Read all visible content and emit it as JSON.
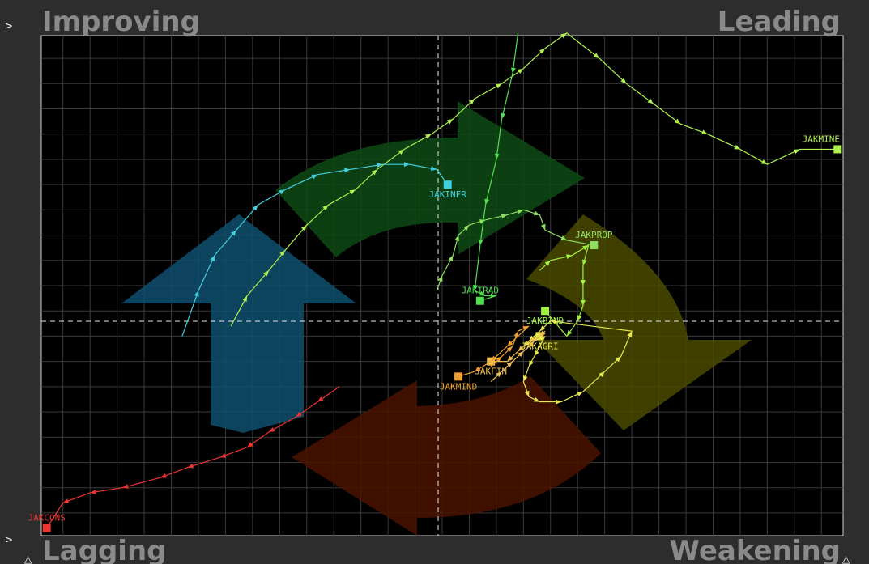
{
  "quadrants": {
    "top_left": "Improving",
    "top_right": "Leading",
    "bottom_left": "Lagging",
    "bottom_right": "Weakening"
  },
  "colors": {
    "background": "#000000",
    "frame": "#2d2d2d",
    "grid": "#3a3a3a",
    "crosshair": "#e8e8e8",
    "improving_arrow": "#0f4f6e",
    "leading_arrow": "#0e4a14",
    "weakening_arrow": "#4a4a00",
    "lagging_arrow": "#4a1300"
  },
  "chart_data": {
    "type": "scatter",
    "subtype": "relative-rotation-graph",
    "title": "",
    "xlabel": "",
    "ylabel": "",
    "center": [
      100,
      100
    ],
    "xlim": [
      92.6,
      107.4
    ],
    "ylim": [
      95.05,
      104.95
    ],
    "grid": true,
    "series": [
      {
        "name": "JAKMINE",
        "color": "#b0f050",
        "points": [
          [
            96.1,
            99.2
          ],
          [
            96.4,
            99.8
          ],
          [
            96.8,
            100.3
          ],
          [
            97.1,
            100.7
          ],
          [
            97.5,
            101.2
          ],
          [
            97.9,
            101.6
          ],
          [
            98.4,
            101.9
          ],
          [
            98.8,
            102.3
          ],
          [
            99.3,
            102.7
          ],
          [
            99.8,
            103.0
          ],
          [
            100.2,
            103.3
          ],
          [
            100.6,
            103.7
          ],
          [
            101.1,
            104.0
          ],
          [
            101.5,
            104.3
          ],
          [
            101.9,
            104.7
          ],
          [
            102.3,
            105.0
          ],
          [
            102.9,
            104.5
          ],
          [
            103.4,
            104.0
          ],
          [
            103.9,
            103.6
          ],
          [
            104.4,
            103.2
          ],
          [
            104.9,
            103.0
          ],
          [
            105.5,
            102.7
          ],
          [
            106.0,
            102.4
          ],
          [
            106.6,
            102.7
          ],
          [
            107.3,
            102.7
          ]
        ]
      },
      {
        "name": "JAKINFR",
        "color": "#40d0e0",
        "points": [
          [
            95.2,
            99.0
          ],
          [
            95.5,
            99.9
          ],
          [
            95.8,
            100.6
          ],
          [
            96.2,
            101.1
          ],
          [
            96.6,
            101.6
          ],
          [
            97.1,
            101.9
          ],
          [
            97.7,
            102.2
          ],
          [
            98.3,
            102.3
          ],
          [
            98.9,
            102.4
          ],
          [
            99.4,
            102.4
          ],
          [
            99.9,
            102.3
          ],
          [
            100.1,
            102.0
          ]
        ]
      },
      {
        "name": "JAKPROP",
        "color": "#90e060",
        "points": [
          [
            99.9,
            99.9
          ],
          [
            100.0,
            100.2
          ],
          [
            100.2,
            100.6
          ],
          [
            100.3,
            101.0
          ],
          [
            100.5,
            101.2
          ],
          [
            100.8,
            101.3
          ],
          [
            101.2,
            101.4
          ],
          [
            101.5,
            101.5
          ],
          [
            101.8,
            101.4
          ],
          [
            101.9,
            101.1
          ],
          [
            102.3,
            100.9
          ],
          [
            102.8,
            100.8
          ]
        ]
      },
      {
        "name": "JAKBIND",
        "color": "#a0f040",
        "points": [
          [
            101.8,
            100.3
          ],
          [
            102.0,
            100.5
          ],
          [
            102.4,
            100.6
          ],
          [
            102.7,
            100.8
          ],
          [
            102.6,
            100.4
          ],
          [
            102.6,
            100.0
          ],
          [
            102.6,
            99.6
          ],
          [
            102.5,
            99.3
          ],
          [
            102.3,
            99.0
          ],
          [
            101.9,
            99.5
          ]
        ]
      },
      {
        "name": "JAKTRAD",
        "color": "#50e050",
        "points": [
          [
            101.4,
            105.0
          ],
          [
            101.3,
            104.2
          ],
          [
            101.1,
            103.3
          ],
          [
            101.0,
            102.5
          ],
          [
            100.8,
            101.6
          ],
          [
            100.7,
            100.8
          ],
          [
            100.6,
            99.9
          ],
          [
            100.8,
            99.8
          ],
          [
            101.0,
            99.8
          ],
          [
            100.7,
            99.7
          ]
        ]
      },
      {
        "name": "JAKAGRI",
        "color": "#e8e850",
        "points": [
          [
            101.9,
            99.0
          ],
          [
            101.7,
            98.6
          ],
          [
            101.6,
            98.4
          ],
          [
            101.5,
            98.1
          ],
          [
            101.6,
            97.8
          ],
          [
            101.8,
            97.7
          ],
          [
            102.2,
            97.7
          ],
          [
            102.6,
            97.9
          ],
          [
            103.0,
            98.3
          ],
          [
            103.3,
            98.6
          ],
          [
            103.5,
            99.1
          ],
          [
            102.0,
            99.3
          ],
          [
            101.8,
            99.1
          ],
          [
            101.6,
            98.9
          ],
          [
            101.5,
            98.8
          ],
          [
            101.8,
            99.0
          ],
          [
            101.8,
            99.0
          ]
        ]
      },
      {
        "name": "JAKFIN",
        "color": "#f0c050",
        "points": [
          [
            100.9,
            98.1
          ],
          [
            101.1,
            98.3
          ],
          [
            101.3,
            98.5
          ],
          [
            101.5,
            98.7
          ],
          [
            101.7,
            98.9
          ],
          [
            101.9,
            99.1
          ],
          [
            101.8,
            99.0
          ],
          [
            101.6,
            98.9
          ],
          [
            101.4,
            98.7
          ],
          [
            101.2,
            98.5
          ],
          [
            100.9,
            98.5
          ]
        ]
      },
      {
        "name": "JAKMIND",
        "color": "#f0a030",
        "points": [
          [
            100.9,
            98.4
          ],
          [
            101.1,
            98.6
          ],
          [
            101.3,
            98.8
          ],
          [
            101.4,
            99.1
          ],
          [
            101.6,
            99.2
          ],
          [
            101.2,
            98.8
          ],
          [
            100.9,
            98.5
          ],
          [
            100.6,
            98.3
          ],
          [
            100.3,
            98.2
          ]
        ]
      },
      {
        "name": "JAKCONS",
        "color": "#ee3333",
        "points": [
          [
            98.1,
            98.0
          ],
          [
            97.7,
            97.7
          ],
          [
            97.3,
            97.4
          ],
          [
            96.8,
            97.1
          ],
          [
            96.4,
            96.8
          ],
          [
            95.9,
            96.6
          ],
          [
            95.3,
            96.4
          ],
          [
            94.8,
            96.2
          ],
          [
            94.1,
            96.0
          ],
          [
            93.5,
            95.9
          ],
          [
            93.0,
            95.7
          ],
          [
            92.7,
            95.2
          ]
        ]
      }
    ]
  }
}
